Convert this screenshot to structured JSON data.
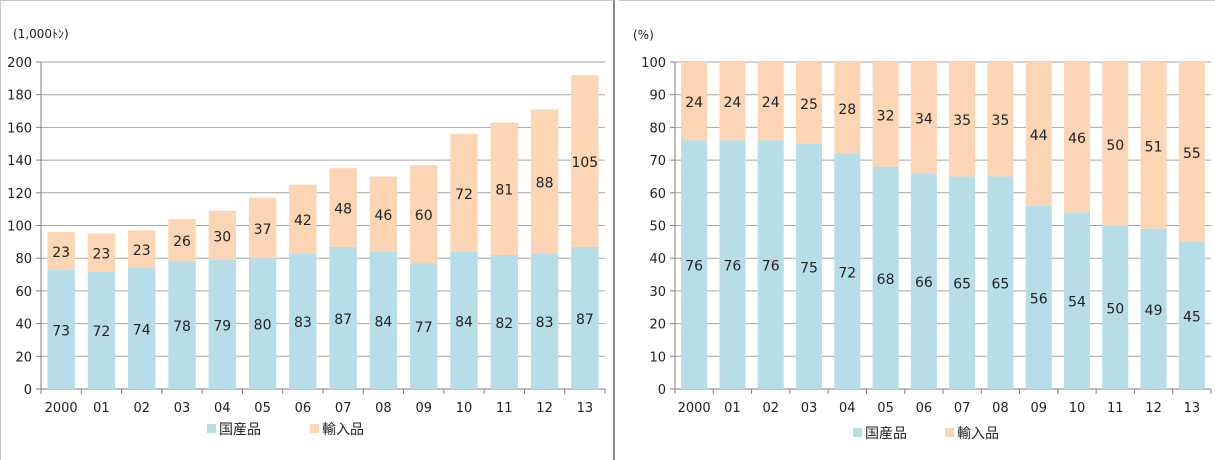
{
  "colors": {
    "domestic": "#b7dde8",
    "imported": "#fcd5b5",
    "grid": "#a6a6a6",
    "axis": "#7f7f7f"
  },
  "chart_data": [
    {
      "type": "bar",
      "stacked": true,
      "unit_label": "(1,000ﾄﾝ)",
      "categories": [
        "2000",
        "01",
        "02",
        "03",
        "04",
        "05",
        "06",
        "07",
        "08",
        "09",
        "10",
        "11",
        "12",
        "13"
      ],
      "ylim": [
        0,
        200
      ],
      "yticks": [
        0,
        20,
        40,
        60,
        80,
        100,
        120,
        140,
        160,
        180,
        200
      ],
      "grid": true,
      "legend_position": "bottom",
      "series": [
        {
          "name": "国産品",
          "color": "#b7dde8",
          "values": [
            73,
            72,
            74,
            78,
            79,
            80,
            83,
            87,
            84,
            77,
            84,
            82,
            83,
            87
          ]
        },
        {
          "name": "輸入品",
          "color": "#fcd5b5",
          "values": [
            23,
            23,
            23,
            26,
            30,
            37,
            42,
            48,
            46,
            60,
            72,
            81,
            88,
            105
          ]
        }
      ]
    },
    {
      "type": "bar",
      "stacked": true,
      "unit_label": "(%)",
      "categories": [
        "2000",
        "01",
        "02",
        "03",
        "04",
        "05",
        "06",
        "07",
        "08",
        "09",
        "10",
        "11",
        "12",
        "13"
      ],
      "ylim": [
        0,
        100
      ],
      "yticks": [
        0,
        10,
        20,
        30,
        40,
        50,
        60,
        70,
        80,
        90,
        100
      ],
      "grid": true,
      "legend_position": "bottom",
      "series": [
        {
          "name": "国産品",
          "color": "#b7dde8",
          "values": [
            76,
            76,
            76,
            75,
            72,
            68,
            66,
            65,
            65,
            56,
            54,
            50,
            49,
            45
          ]
        },
        {
          "name": "輸入品",
          "color": "#fcd5b5",
          "values": [
            24,
            24,
            24,
            25,
            28,
            32,
            34,
            35,
            35,
            44,
            46,
            50,
            51,
            55
          ]
        }
      ]
    }
  ]
}
